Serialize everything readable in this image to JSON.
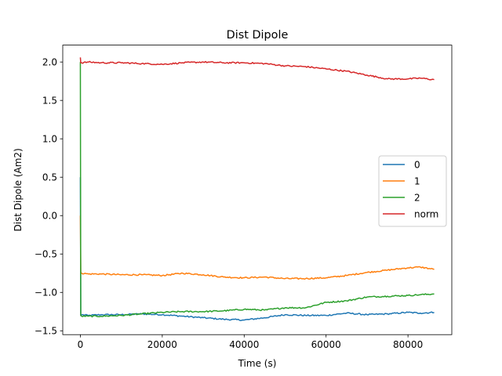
{
  "chart_data": {
    "type": "line",
    "title": "Dist Dipole",
    "xlabel": "Time (s)",
    "ylabel": "Dist Dipole (Am2)",
    "xlim": [
      -4300,
      90700
    ],
    "ylim": [
      -1.55,
      2.22
    ],
    "xticks": [
      0,
      20000,
      40000,
      60000,
      80000
    ],
    "yticks": [
      -1.5,
      -1.0,
      -0.5,
      0.0,
      0.5,
      1.0,
      1.5,
      2.0
    ],
    "xtick_labels": [
      "0",
      "20000",
      "40000",
      "60000",
      "80000"
    ],
    "ytick_labels": [
      "−1.5",
      "−1.0",
      "−0.5",
      "0.0",
      "0.5",
      "1.0",
      "1.5",
      "2.0"
    ],
    "grid": false,
    "legend_position": "center-right",
    "series": [
      {
        "name": "0",
        "color": "#1f77b4",
        "x": [
          0,
          100,
          300,
          2000,
          5000,
          10000,
          15000,
          20000,
          25000,
          30000,
          35000,
          40000,
          45000,
          50000,
          55000,
          60000,
          65000,
          70000,
          75000,
          80000,
          83000,
          86400
        ],
        "y": [
          0.5,
          -1.3,
          -1.29,
          -1.3,
          -1.29,
          -1.29,
          -1.28,
          -1.29,
          -1.31,
          -1.33,
          -1.35,
          -1.36,
          -1.33,
          -1.29,
          -1.3,
          -1.3,
          -1.27,
          -1.29,
          -1.28,
          -1.26,
          -1.27,
          -1.26
        ]
      },
      {
        "name": "1",
        "color": "#ff7f0e",
        "x": [
          0,
          100,
          300,
          2000,
          5000,
          10000,
          15000,
          20000,
          25000,
          30000,
          35000,
          40000,
          45000,
          50000,
          55000,
          60000,
          65000,
          70000,
          75000,
          80000,
          83000,
          86400
        ],
        "y": [
          0.0,
          -0.74,
          -0.75,
          -0.76,
          -0.76,
          -0.77,
          -0.77,
          -0.78,
          -0.75,
          -0.77,
          -0.8,
          -0.81,
          -0.8,
          -0.82,
          -0.82,
          -0.81,
          -0.78,
          -0.74,
          -0.71,
          -0.68,
          -0.67,
          -0.7
        ]
      },
      {
        "name": "2",
        "color": "#2ca02c",
        "x": [
          0,
          100,
          300,
          2000,
          5000,
          10000,
          15000,
          20000,
          25000,
          30000,
          35000,
          40000,
          45000,
          50000,
          55000,
          60000,
          65000,
          70000,
          75000,
          80000,
          83000,
          86400
        ],
        "y": [
          2.0,
          -1.3,
          -1.31,
          -1.31,
          -1.31,
          -1.3,
          -1.28,
          -1.26,
          -1.25,
          -1.25,
          -1.24,
          -1.22,
          -1.23,
          -1.2,
          -1.2,
          -1.13,
          -1.11,
          -1.06,
          -1.05,
          -1.04,
          -1.03,
          -1.02
        ]
      },
      {
        "name": "norm",
        "color": "#d62728",
        "x": [
          0,
          100,
          300,
          2000,
          5000,
          10000,
          15000,
          20000,
          25000,
          30000,
          35000,
          40000,
          45000,
          50000,
          55000,
          60000,
          65000,
          70000,
          75000,
          80000,
          83000,
          86400
        ],
        "y": [
          2.06,
          1.99,
          1.99,
          2.0,
          1.99,
          1.99,
          1.98,
          1.97,
          1.99,
          2.0,
          1.99,
          1.99,
          1.98,
          1.95,
          1.94,
          1.91,
          1.88,
          1.83,
          1.78,
          1.78,
          1.79,
          1.77
        ]
      }
    ]
  }
}
